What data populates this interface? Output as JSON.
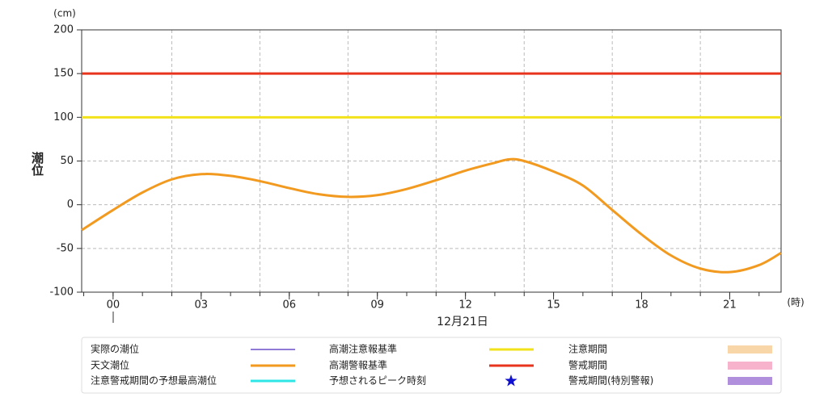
{
  "chart_data": {
    "type": "line",
    "y_label": "潮位",
    "y_unit": "(cm)",
    "x_unit": "(時)",
    "x_date": "12月21日",
    "xlim": [
      -1.07,
      22.75
    ],
    "ylim": [
      -100,
      200
    ],
    "xticks": [
      {
        "value": 0,
        "label": "00"
      },
      {
        "value": 3,
        "label": "03"
      },
      {
        "value": 6,
        "label": "06"
      },
      {
        "value": 9,
        "label": "09"
      },
      {
        "value": 12,
        "label": "12"
      },
      {
        "value": 15,
        "label": "15"
      },
      {
        "value": 18,
        "label": "18"
      },
      {
        "value": 21,
        "label": "21"
      }
    ],
    "xminorticks": [
      -1,
      0,
      1,
      2,
      3,
      4,
      5,
      6,
      7,
      8,
      9,
      10,
      11,
      12,
      13,
      14,
      15,
      16,
      17,
      18,
      19,
      20,
      21,
      22
    ],
    "xgrid": [
      2,
      5,
      8,
      11,
      14,
      17,
      20
    ],
    "yticks": [
      200,
      150,
      100,
      50,
      0,
      -50,
      -100
    ],
    "grid": true,
    "thresholds": [
      {
        "value": 100,
        "color": "#f2e21a"
      },
      {
        "value": 150,
        "color": "#e8341c"
      }
    ],
    "series": [
      {
        "color": "#f29a1f",
        "x": [
          -1.07,
          0,
          1,
          2,
          3,
          4,
          5,
          6,
          7,
          8,
          9,
          10,
          11,
          12,
          13,
          13.5,
          14,
          15,
          16,
          17,
          18,
          19,
          20,
          21,
          22,
          22.75
        ],
        "values": [
          -29,
          -6,
          14,
          29,
          35,
          33,
          27,
          19,
          12,
          9,
          11,
          18,
          28,
          39,
          48,
          52,
          50,
          38,
          22,
          -6,
          -34,
          -58,
          -73,
          -77,
          -69,
          -55
        ]
      }
    ],
    "legend_items": [
      {
        "name": "実際の潮位",
        "color": "#6a4fc8",
        "symbol": "thin-line"
      },
      {
        "name": "高潮注意報基準",
        "color": "#f2e21a",
        "symbol": "line"
      },
      {
        "name": "注意期間",
        "color": "#f9d6a8",
        "symbol": "box"
      },
      {
        "name": "天文潮位",
        "color": "#f29a1f",
        "symbol": "line"
      },
      {
        "name": "高潮警報基準",
        "color": "#e8341c",
        "symbol": "line"
      },
      {
        "name": "警戒期間",
        "color": "#f7b3cc",
        "symbol": "box"
      },
      {
        "name": "注意警戒期間の予想最高潮位",
        "color": "#2ee6e6",
        "symbol": "line"
      },
      {
        "name": "予想されるピーク時刻",
        "color": "#1010d0",
        "symbol": "star"
      },
      {
        "name": "警戒期間(特別警報)",
        "color": "#b090dc",
        "symbol": "box"
      }
    ]
  }
}
